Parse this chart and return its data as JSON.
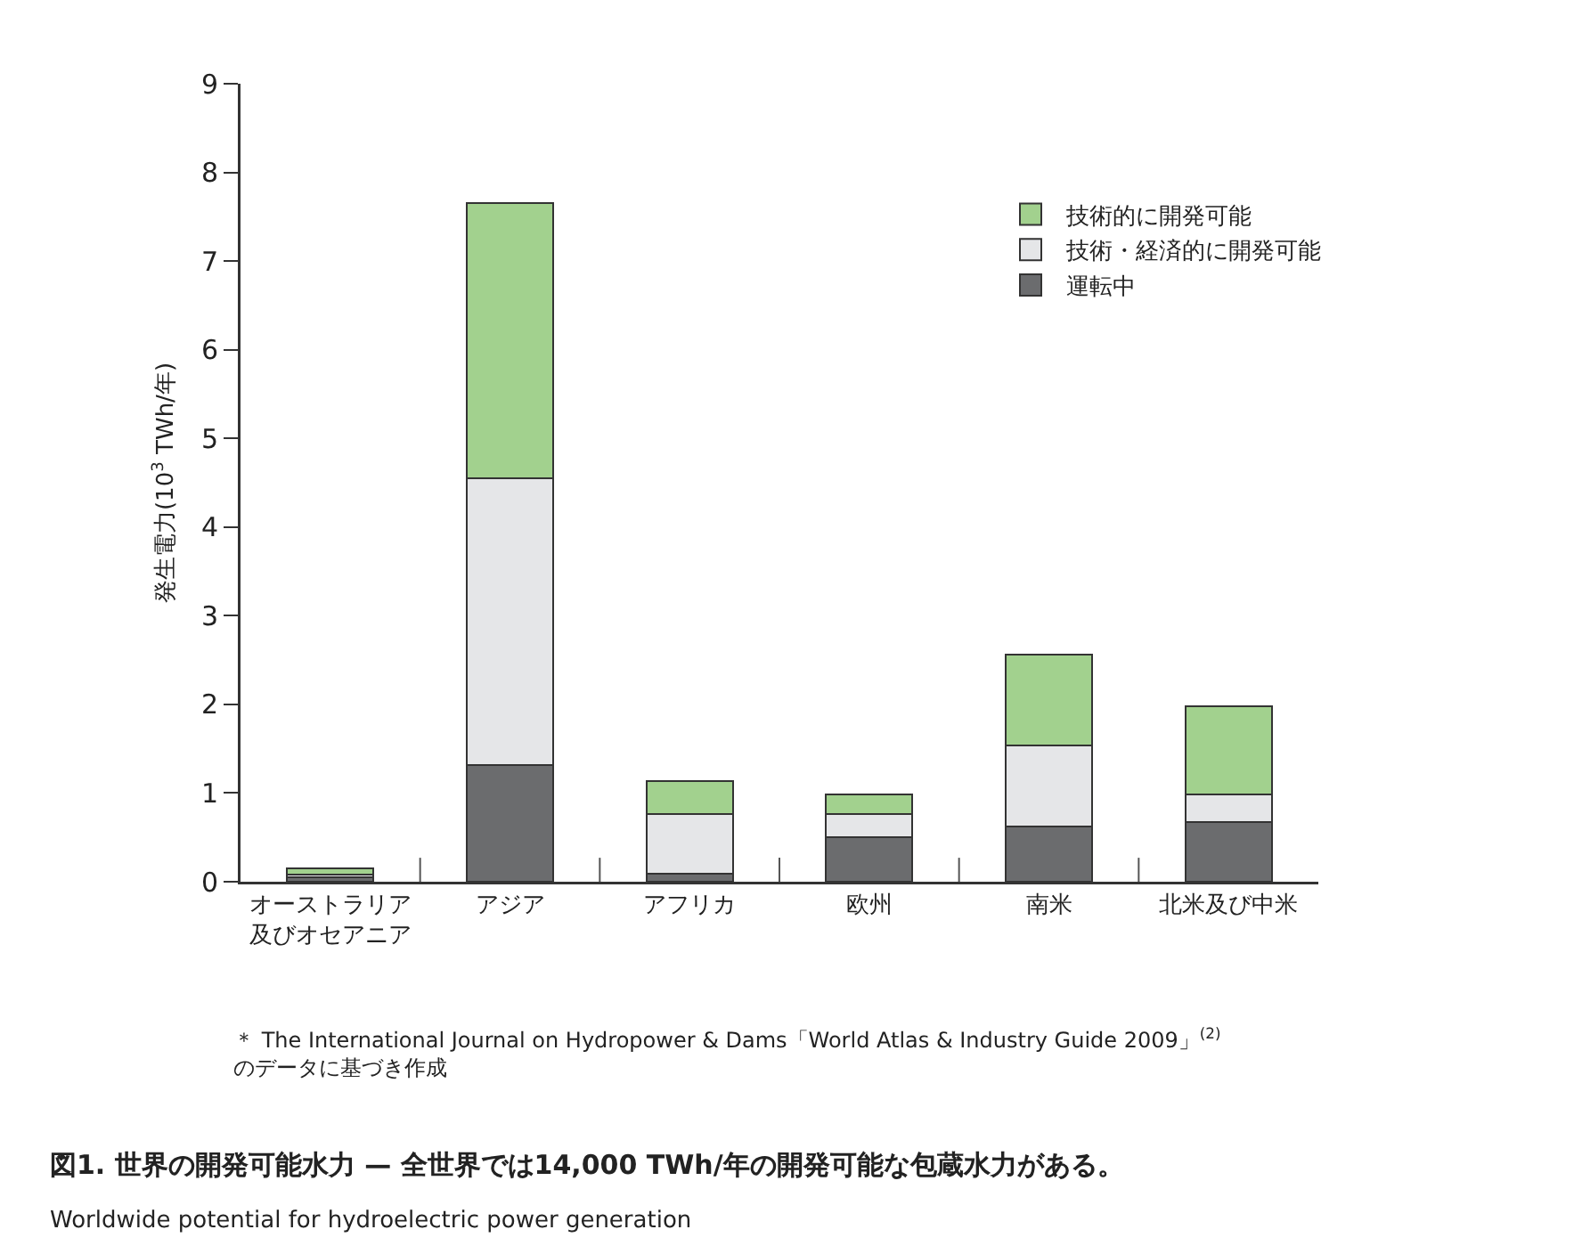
{
  "chart_data": {
    "type": "bar",
    "stacked": true,
    "title": "図1. 世界の開発可能水力 — 全世界では14,000 TWh/年の開発可能な包蔵水力がある。",
    "subtitle": "Worldwide potential for hydroelectric power generation",
    "ylabel": "発生電力(10$^{3}$ TWh/年)",
    "annotations": [
      "＊ The International Journal on Hydropower & Dams「World Atlas & Industry Guide 2009」$^{(2)}$のデータに基づき作成"
    ],
    "categories": [
      "オーストラリア及びオセアニア",
      "アジア",
      "アフリカ",
      "欧州",
      "南米",
      "北米及び中米"
    ],
    "series": [
      {
        "name": "運転中",
        "color": "#6b6c6e",
        "values": [
          0.05,
          1.32,
          0.09,
          0.5,
          0.62,
          0.67
        ]
      },
      {
        "name": "技術・経済的に開発可能",
        "color": "#e5e6e8",
        "values": [
          0.03,
          3.23,
          0.67,
          0.26,
          0.92,
          0.31
        ]
      },
      {
        "name": "技術的に開発可能",
        "color": "#a2d18e",
        "values": [
          0.07,
          3.1,
          0.38,
          0.22,
          1.02,
          1.0
        ]
      }
    ],
    "ylim": [
      0,
      9
    ],
    "yticks": [
      0,
      1,
      2,
      3,
      4,
      5,
      6,
      7,
      8,
      9
    ],
    "grid": false,
    "legend": "top right"
  }
}
